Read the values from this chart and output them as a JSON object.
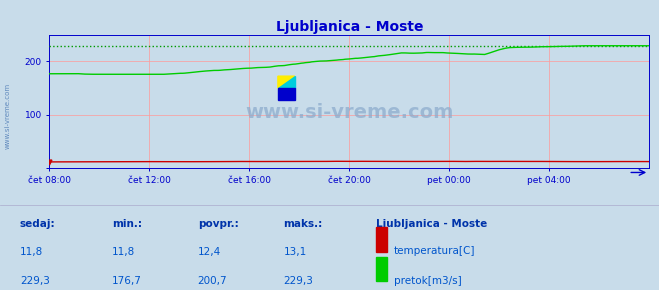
{
  "title": "Ljubljanica - Moste",
  "title_color": "#0000cc",
  "bg_color": "#c8dcea",
  "plot_bg_color": "#c8dcea",
  "grid_color_h": "#ff9999",
  "grid_color_v": "#ff9999",
  "axis_color": "#0000cc",
  "tick_color": "#0000cc",
  "watermark_text": "www.si-vreme.com",
  "watermark_color": "#8aaacc",
  "watermark_alpha": 0.7,
  "x_tick_labels": [
    "čet 08:00",
    "čet 12:00",
    "čet 16:00",
    "čet 20:00",
    "pet 00:00",
    "pet 04:00"
  ],
  "x_tick_positions": [
    0,
    48,
    96,
    144,
    192,
    240
  ],
  "ylim": [
    0,
    250
  ],
  "xlim": [
    0,
    288
  ],
  "pretok_color": "#00cc00",
  "temperatura_color": "#cc0000",
  "pretok_dotted_color": "#009900",
  "footer_bg_color": "#ffffff",
  "footer_text_color": "#0055cc",
  "footer_label_color": "#0033aa",
  "sedaj_label": "sedaj:",
  "min_label": "min.:",
  "povpr_label": "povpr.:",
  "maks_label": "maks.:",
  "station_label": "Ljubljanica - Moste",
  "temp_label": "temperatura[C]",
  "pretok_label": "pretok[m3/s]",
  "sedaj_temp": "11,8",
  "min_temp": "11,8",
  "povpr_temp": "12,4",
  "maks_temp": "13,1",
  "sedaj_pretok": "229,3",
  "min_pretok": "176,7",
  "povpr_pretok": "200,7",
  "maks_pretok": "229,3",
  "pretok_max_val": 229.3,
  "sidebar_text": "www.si-vreme.com",
  "sidebar_color": "#3366aa"
}
